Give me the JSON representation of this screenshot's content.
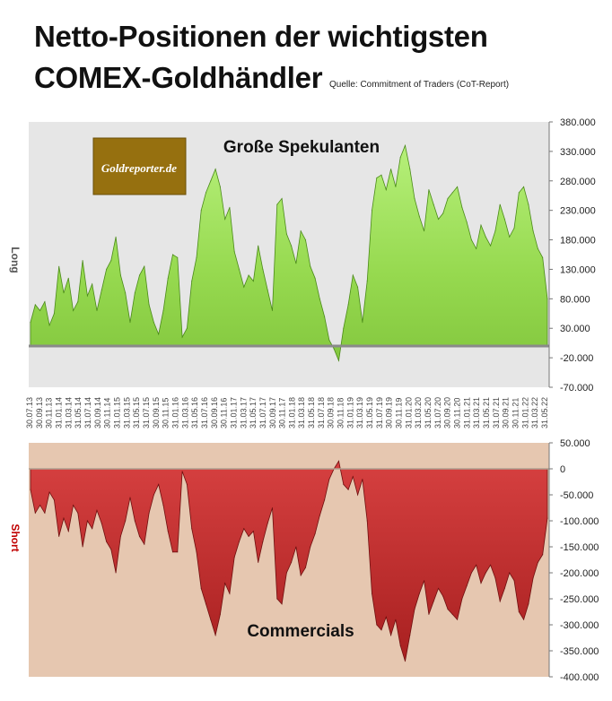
{
  "title_line1": "Netto-Positionen der wichtigsten",
  "title_line2": "COMEX-Goldhändler",
  "source": "Quelle: Commitment of Traders (CoT-Report)",
  "logo_text": "Goldreporter.de",
  "colors": {
    "top_bg": "#e6e6e6",
    "top_fill": "#96d94f",
    "top_edge": "#4a8a18",
    "bottom_bg": "#e6c7b0",
    "bottom_fill": "#c83030",
    "bottom_edge": "#6e0f0f",
    "logo_bg": "#96700f"
  },
  "chart_data": [
    {
      "type": "area",
      "series_label": "Große Spekulanten",
      "ylabel": "Long",
      "ylim": [
        -70000,
        380000
      ],
      "y_ticks": [
        "380.000",
        "330.000",
        "280.000",
        "230.000",
        "180.000",
        "130.000",
        "80.000",
        "30.000",
        "-20.000",
        "-70.000"
      ],
      "x_ticks": [
        "30.07.13",
        "30.09.13",
        "30.11.13",
        "31.01.14",
        "31.03.14",
        "31.05.14",
        "31.07.14",
        "30.09.14",
        "30.11.14",
        "31.01.15",
        "31.03.15",
        "31.05.15",
        "31.07.15",
        "30.09.15",
        "30.11.15",
        "31.01.16",
        "31.03.16",
        "31.05.16",
        "31.07.16",
        "30.09.16",
        "30.11.16",
        "31.01.17",
        "31.03.17",
        "31.05.17",
        "31.07.17",
        "30.09.17",
        "30.11.17",
        "31.01.18",
        "31.03.18",
        "31.05.18",
        "31.07.18",
        "30.09.18",
        "30.11.18",
        "31.01.19",
        "31.03.19",
        "31.05.19",
        "31.07.19",
        "30.09.19",
        "30.11.19",
        "31.01.20",
        "31.03.20",
        "31.05.20",
        "31.07.20",
        "30.09.20",
        "30.11.20",
        "31.01.21",
        "31.03.21",
        "31.05.21",
        "31.07.21",
        "30.09.21",
        "30.11.21",
        "31.01.22",
        "31.03.22",
        "31.05.22"
      ],
      "values": [
        40000,
        70000,
        60000,
        75000,
        35000,
        55000,
        135000,
        90000,
        115000,
        60000,
        75000,
        145000,
        85000,
        105000,
        60000,
        95000,
        130000,
        145000,
        185000,
        120000,
        90000,
        40000,
        90000,
        120000,
        135000,
        70000,
        40000,
        20000,
        60000,
        115000,
        155000,
        150000,
        15000,
        30000,
        110000,
        150000,
        230000,
        260000,
        280000,
        300000,
        270000,
        215000,
        235000,
        160000,
        130000,
        100000,
        120000,
        110000,
        170000,
        130000,
        95000,
        60000,
        240000,
        250000,
        190000,
        170000,
        140000,
        195000,
        180000,
        135000,
        115000,
        80000,
        50000,
        10000,
        -5000,
        -25000,
        30000,
        70000,
        120000,
        100000,
        40000,
        110000,
        230000,
        285000,
        290000,
        265000,
        300000,
        270000,
        320000,
        340000,
        300000,
        250000,
        220000,
        195000,
        265000,
        240000,
        215000,
        225000,
        250000,
        260000,
        270000,
        235000,
        210000,
        180000,
        165000,
        205000,
        185000,
        170000,
        195000,
        240000,
        215000,
        185000,
        200000,
        260000,
        270000,
        240000,
        195000,
        165000,
        150000,
        80000
      ]
    },
    {
      "type": "area",
      "series_label": "Commercials",
      "ylabel": "Short",
      "ylim": [
        -400000,
        50000
      ],
      "y_ticks": [
        "50.000",
        "0",
        "-50.000",
        "-100.000",
        "-150.000",
        "-200.000",
        "-250.000",
        "-300.000",
        "-350.000",
        "-400.000"
      ],
      "values": [
        -40000,
        -85000,
        -70000,
        -85000,
        -45000,
        -60000,
        -130000,
        -95000,
        -120000,
        -70000,
        -85000,
        -150000,
        -100000,
        -115000,
        -80000,
        -105000,
        -140000,
        -155000,
        -200000,
        -130000,
        -100000,
        -55000,
        -100000,
        -130000,
        -145000,
        -85000,
        -50000,
        -30000,
        -70000,
        -120000,
        -160000,
        -160000,
        -5000,
        -30000,
        -115000,
        -160000,
        -230000,
        -260000,
        -290000,
        -320000,
        -280000,
        -220000,
        -240000,
        -170000,
        -140000,
        -115000,
        -130000,
        -120000,
        -180000,
        -140000,
        -105000,
        -75000,
        -250000,
        -260000,
        -200000,
        -180000,
        -150000,
        -205000,
        -190000,
        -150000,
        -125000,
        -90000,
        -60000,
        -20000,
        0,
        15000,
        -30000,
        -40000,
        -15000,
        -50000,
        -20000,
        -100000,
        -240000,
        -300000,
        -310000,
        -285000,
        -320000,
        -290000,
        -340000,
        -370000,
        -320000,
        -270000,
        -240000,
        -215000,
        -280000,
        -255000,
        -230000,
        -245000,
        -270000,
        -280000,
        -290000,
        -250000,
        -225000,
        -200000,
        -185000,
        -220000,
        -200000,
        -185000,
        -210000,
        -255000,
        -230000,
        -200000,
        -215000,
        -275000,
        -290000,
        -260000,
        -210000,
        -180000,
        -165000,
        -95000
      ]
    }
  ]
}
